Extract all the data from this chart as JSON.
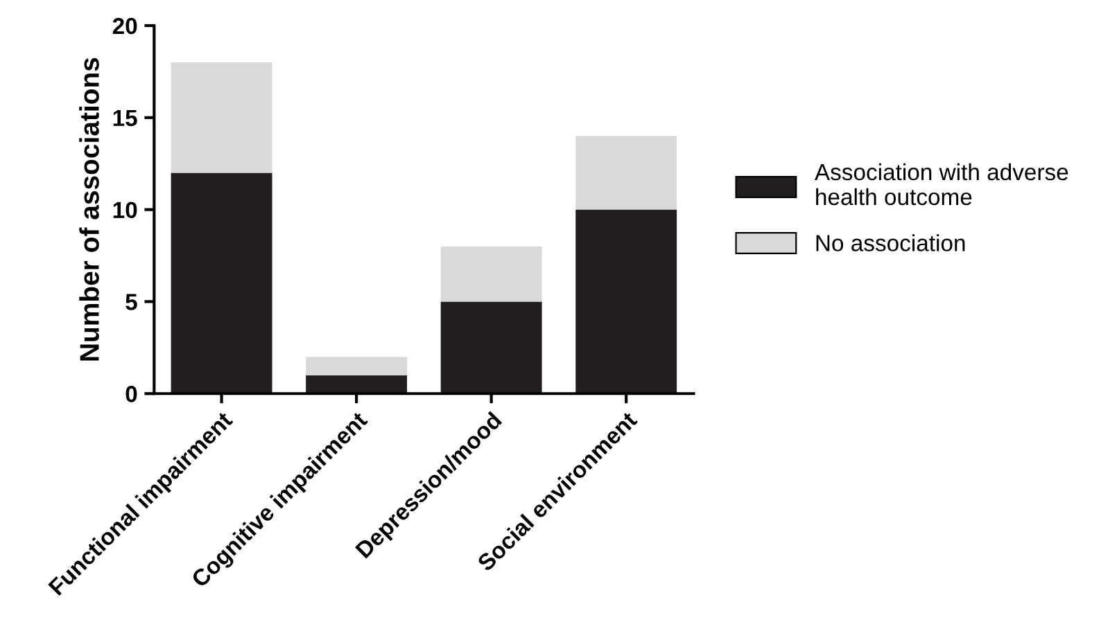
{
  "chart_data": {
    "type": "bar",
    "stacked": true,
    "ylabel": "Number of associations",
    "categories": [
      "Functional impairment",
      "Cognitive impairment",
      "Depression/mood",
      "Social environment"
    ],
    "series": [
      {
        "name": "Association with adverse health outcome",
        "color": "#231f20",
        "values": [
          12,
          1,
          5,
          10
        ]
      },
      {
        "name": "No association",
        "color": "#d9d9d9",
        "values": [
          6,
          1,
          3,
          4
        ]
      }
    ],
    "ylim": [
      0,
      20
    ],
    "yticks": [
      0,
      5,
      10,
      15,
      20
    ],
    "grid": false,
    "legend": "right"
  }
}
